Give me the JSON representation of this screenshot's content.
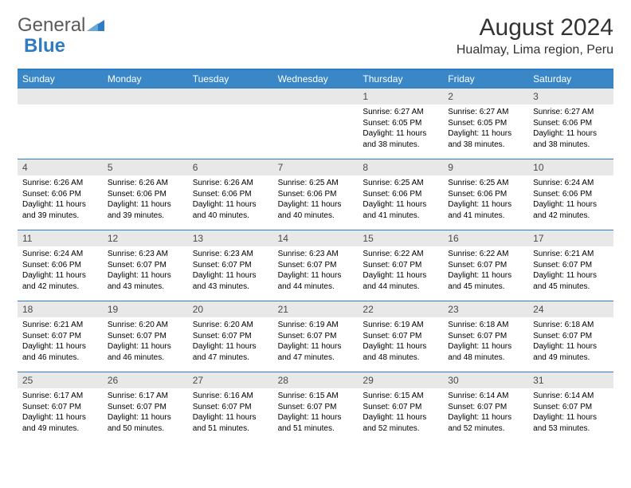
{
  "logo": {
    "part1": "General",
    "part2": "Blue"
  },
  "header": {
    "month": "August 2024",
    "location": "Hualmay, Lima region, Peru"
  },
  "colors": {
    "header_bar": "#3a87c8",
    "rule": "#2f7bc4",
    "num_bg": "#e8e8e8",
    "text": "#000000"
  },
  "dayNames": [
    "Sunday",
    "Monday",
    "Tuesday",
    "Wednesday",
    "Thursday",
    "Friday",
    "Saturday"
  ],
  "startOffset": 4,
  "days": [
    {
      "n": 1,
      "sunrise": "6:27 AM",
      "sunset": "6:05 PM",
      "daylight": "11 hours and 38 minutes."
    },
    {
      "n": 2,
      "sunrise": "6:27 AM",
      "sunset": "6:05 PM",
      "daylight": "11 hours and 38 minutes."
    },
    {
      "n": 3,
      "sunrise": "6:27 AM",
      "sunset": "6:06 PM",
      "daylight": "11 hours and 38 minutes."
    },
    {
      "n": 4,
      "sunrise": "6:26 AM",
      "sunset": "6:06 PM",
      "daylight": "11 hours and 39 minutes."
    },
    {
      "n": 5,
      "sunrise": "6:26 AM",
      "sunset": "6:06 PM",
      "daylight": "11 hours and 39 minutes."
    },
    {
      "n": 6,
      "sunrise": "6:26 AM",
      "sunset": "6:06 PM",
      "daylight": "11 hours and 40 minutes."
    },
    {
      "n": 7,
      "sunrise": "6:25 AM",
      "sunset": "6:06 PM",
      "daylight": "11 hours and 40 minutes."
    },
    {
      "n": 8,
      "sunrise": "6:25 AM",
      "sunset": "6:06 PM",
      "daylight": "11 hours and 41 minutes."
    },
    {
      "n": 9,
      "sunrise": "6:25 AM",
      "sunset": "6:06 PM",
      "daylight": "11 hours and 41 minutes."
    },
    {
      "n": 10,
      "sunrise": "6:24 AM",
      "sunset": "6:06 PM",
      "daylight": "11 hours and 42 minutes."
    },
    {
      "n": 11,
      "sunrise": "6:24 AM",
      "sunset": "6:06 PM",
      "daylight": "11 hours and 42 minutes."
    },
    {
      "n": 12,
      "sunrise": "6:23 AM",
      "sunset": "6:07 PM",
      "daylight": "11 hours and 43 minutes."
    },
    {
      "n": 13,
      "sunrise": "6:23 AM",
      "sunset": "6:07 PM",
      "daylight": "11 hours and 43 minutes."
    },
    {
      "n": 14,
      "sunrise": "6:23 AM",
      "sunset": "6:07 PM",
      "daylight": "11 hours and 44 minutes."
    },
    {
      "n": 15,
      "sunrise": "6:22 AM",
      "sunset": "6:07 PM",
      "daylight": "11 hours and 44 minutes."
    },
    {
      "n": 16,
      "sunrise": "6:22 AM",
      "sunset": "6:07 PM",
      "daylight": "11 hours and 45 minutes."
    },
    {
      "n": 17,
      "sunrise": "6:21 AM",
      "sunset": "6:07 PM",
      "daylight": "11 hours and 45 minutes."
    },
    {
      "n": 18,
      "sunrise": "6:21 AM",
      "sunset": "6:07 PM",
      "daylight": "11 hours and 46 minutes."
    },
    {
      "n": 19,
      "sunrise": "6:20 AM",
      "sunset": "6:07 PM",
      "daylight": "11 hours and 46 minutes."
    },
    {
      "n": 20,
      "sunrise": "6:20 AM",
      "sunset": "6:07 PM",
      "daylight": "11 hours and 47 minutes."
    },
    {
      "n": 21,
      "sunrise": "6:19 AM",
      "sunset": "6:07 PM",
      "daylight": "11 hours and 47 minutes."
    },
    {
      "n": 22,
      "sunrise": "6:19 AM",
      "sunset": "6:07 PM",
      "daylight": "11 hours and 48 minutes."
    },
    {
      "n": 23,
      "sunrise": "6:18 AM",
      "sunset": "6:07 PM",
      "daylight": "11 hours and 48 minutes."
    },
    {
      "n": 24,
      "sunrise": "6:18 AM",
      "sunset": "6:07 PM",
      "daylight": "11 hours and 49 minutes."
    },
    {
      "n": 25,
      "sunrise": "6:17 AM",
      "sunset": "6:07 PM",
      "daylight": "11 hours and 49 minutes."
    },
    {
      "n": 26,
      "sunrise": "6:17 AM",
      "sunset": "6:07 PM",
      "daylight": "11 hours and 50 minutes."
    },
    {
      "n": 27,
      "sunrise": "6:16 AM",
      "sunset": "6:07 PM",
      "daylight": "11 hours and 51 minutes."
    },
    {
      "n": 28,
      "sunrise": "6:15 AM",
      "sunset": "6:07 PM",
      "daylight": "11 hours and 51 minutes."
    },
    {
      "n": 29,
      "sunrise": "6:15 AM",
      "sunset": "6:07 PM",
      "daylight": "11 hours and 52 minutes."
    },
    {
      "n": 30,
      "sunrise": "6:14 AM",
      "sunset": "6:07 PM",
      "daylight": "11 hours and 52 minutes."
    },
    {
      "n": 31,
      "sunrise": "6:14 AM",
      "sunset": "6:07 PM",
      "daylight": "11 hours and 53 minutes."
    }
  ],
  "labels": {
    "sunrise": "Sunrise:",
    "sunset": "Sunset:",
    "daylight": "Daylight:"
  }
}
